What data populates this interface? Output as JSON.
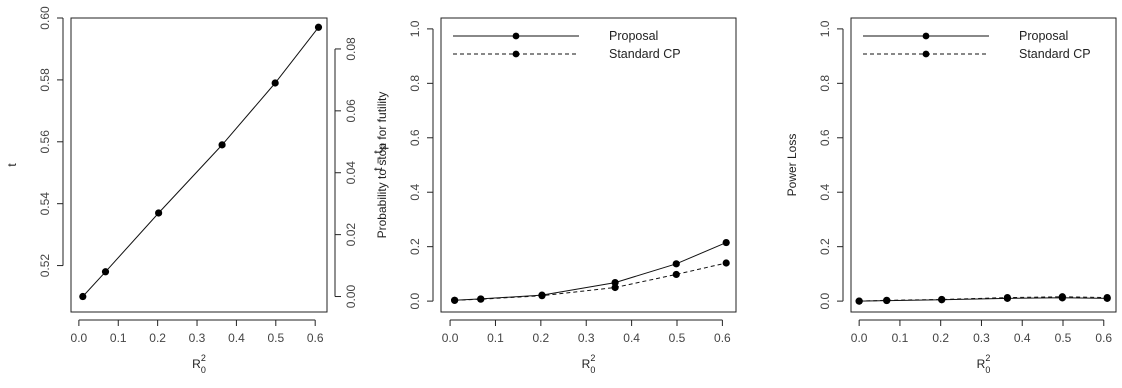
{
  "chart_data": [
    {
      "type": "line",
      "panel": "left",
      "x": [
        0.01,
        0.0676,
        0.2025,
        0.3636,
        0.4984,
        0.6084
      ],
      "series": [
        {
          "values": [
            0.51,
            0.518,
            0.537,
            0.559,
            0.579,
            0.597
          ],
          "marker": "filled-circle",
          "line": "solid"
        }
      ],
      "xlim": [
        -0.02,
        0.63
      ],
      "ylim": [
        0.505,
        0.6
      ],
      "xticks": [
        0.0,
        0.1,
        0.2,
        0.3,
        0.4,
        0.5,
        0.6
      ],
      "xtick_labels": [
        "0.0",
        "0.1",
        "0.2",
        "0.3",
        "0.4",
        "0.5",
        "0.6"
      ],
      "yticks": [
        0.52,
        0.54,
        0.56,
        0.58,
        0.6
      ],
      "ytick_labels": [
        "0.52",
        "0.54",
        "0.56",
        "0.58",
        "0.60"
      ],
      "y2ticks": [
        0.0,
        0.02,
        0.04,
        0.06,
        0.08
      ],
      "y2tick_labels": [
        "0.00",
        "0.02",
        "0.04",
        "0.06",
        "0.08"
      ],
      "y2_offset": 0.51,
      "xlabel": {
        "base": "R",
        "sup": "2",
        "sub": "0"
      },
      "ylabel": "t",
      "y2label": {
        "base": "t − t",
        "sub": "st"
      }
    },
    {
      "type": "line",
      "panel": "middle",
      "x": [
        0.01,
        0.0676,
        0.2025,
        0.3636,
        0.4984,
        0.6084
      ],
      "series": [
        {
          "name": "Proposal",
          "values": [
            0.003,
            0.008,
            0.022,
            0.068,
            0.137,
            0.215
          ],
          "line": "solid",
          "marker": "filled-circle"
        },
        {
          "name": "Standard CP",
          "values": [
            0.003,
            0.007,
            0.02,
            0.05,
            0.098,
            0.14
          ],
          "line": "dashed",
          "marker": "filled-circle"
        }
      ],
      "xlim": [
        -0.02,
        0.63
      ],
      "ylim": [
        -0.04,
        1.04
      ],
      "xticks": [
        0.0,
        0.1,
        0.2,
        0.3,
        0.4,
        0.5,
        0.6
      ],
      "xtick_labels": [
        "0.0",
        "0.1",
        "0.2",
        "0.3",
        "0.4",
        "0.5",
        "0.6"
      ],
      "yticks": [
        0.0,
        0.2,
        0.4,
        0.6,
        0.8,
        1.0
      ],
      "ytick_labels": [
        "0.0",
        "0.2",
        "0.4",
        "0.6",
        "0.8",
        "1.0"
      ],
      "xlabel": {
        "base": "R",
        "sup": "2",
        "sub": "0"
      },
      "ylabel": "Probability to stop for futility",
      "legend": "top"
    },
    {
      "type": "line",
      "panel": "right",
      "x": [
        0.0,
        0.0676,
        0.2025,
        0.3636,
        0.4984,
        0.6084
      ],
      "series": [
        {
          "name": "Proposal",
          "values": [
            0.0,
            0.002,
            0.005,
            0.01,
            0.012,
            0.01
          ],
          "line": "solid",
          "marker": "filled-circle"
        },
        {
          "name": "Standard CP",
          "values": [
            0.0,
            0.003,
            0.006,
            0.013,
            0.016,
            0.013
          ],
          "line": "dashed",
          "marker": "filled-circle"
        }
      ],
      "xlim": [
        -0.02,
        0.63
      ],
      "ylim": [
        -0.04,
        1.04
      ],
      "xticks": [
        0.0,
        0.1,
        0.2,
        0.3,
        0.4,
        0.5,
        0.6
      ],
      "xtick_labels": [
        "0.0",
        "0.1",
        "0.2",
        "0.3",
        "0.4",
        "0.5",
        "0.6"
      ],
      "yticks": [
        0.0,
        0.2,
        0.4,
        0.6,
        0.8,
        1.0
      ],
      "ytick_labels": [
        "0.0",
        "0.2",
        "0.4",
        "0.6",
        "0.8",
        "1.0"
      ],
      "xlabel": {
        "base": "R",
        "sup": "2",
        "sub": "0"
      },
      "ylabel": "Power Loss",
      "legend": "top"
    }
  ]
}
